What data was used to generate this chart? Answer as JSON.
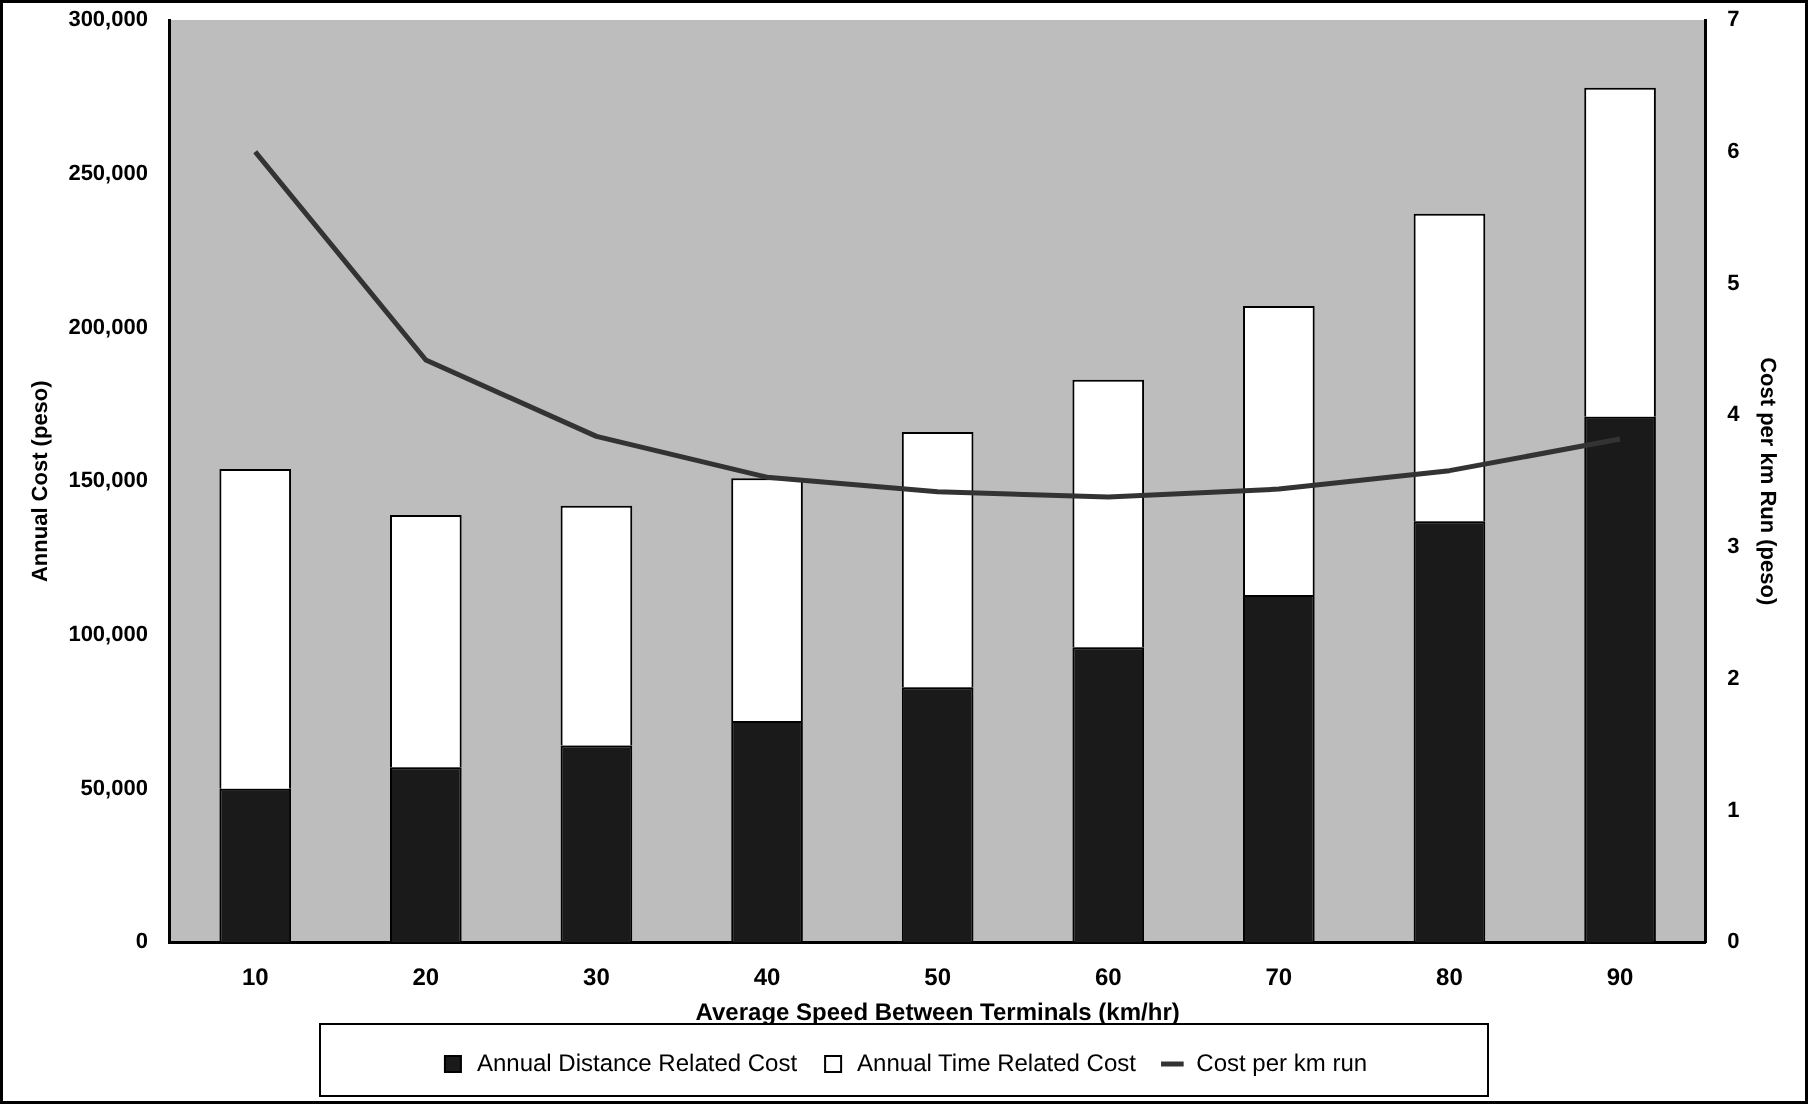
{
  "chart_data": {
    "type": "bar",
    "stacked": true,
    "xlabel": "Average Speed Between Terminals (km/hr)",
    "ylabel": "Annual Cost (peso)",
    "y2label": "Cost per km Run (peso)",
    "categories": [
      "10",
      "20",
      "30",
      "40",
      "50",
      "60",
      "70",
      "80",
      "90"
    ],
    "series": [
      {
        "name": "Annual Distance Related Cost",
        "color": "#1a1a1a",
        "values": [
          50000,
          57000,
          64000,
          72000,
          83000,
          96000,
          113000,
          137000,
          171000
        ]
      },
      {
        "name": "Annual Time Related Cost",
        "color": "#ffffff",
        "values": [
          104000,
          82000,
          78000,
          79000,
          83000,
          87000,
          94000,
          100000,
          107000
        ]
      },
      {
        "name": "Cost per km run",
        "type": "line",
        "axis": "y2",
        "color": "#333333",
        "marker": "none",
        "values": [
          6.0,
          4.42,
          3.84,
          3.53,
          3.42,
          3.38,
          3.44,
          3.58,
          3.82
        ]
      }
    ],
    "ylim": [
      0,
      300000
    ],
    "yticks": [
      0,
      {
        "value": 50000,
        "label": "50,000"
      },
      {
        "value": 100000,
        "label": "100,000"
      },
      {
        "value": 150000,
        "label": "150,000"
      },
      {
        "value": 200000,
        "label": "200,000"
      },
      {
        "value": 250000,
        "label": "250,000"
      },
      {
        "value": 300000,
        "label": "300,000"
      }
    ],
    "y2lim": [
      0,
      7
    ],
    "y2ticks": [
      0,
      1,
      2,
      3,
      4,
      5,
      6,
      7
    ],
    "grid": false,
    "legend": "bottom"
  }
}
